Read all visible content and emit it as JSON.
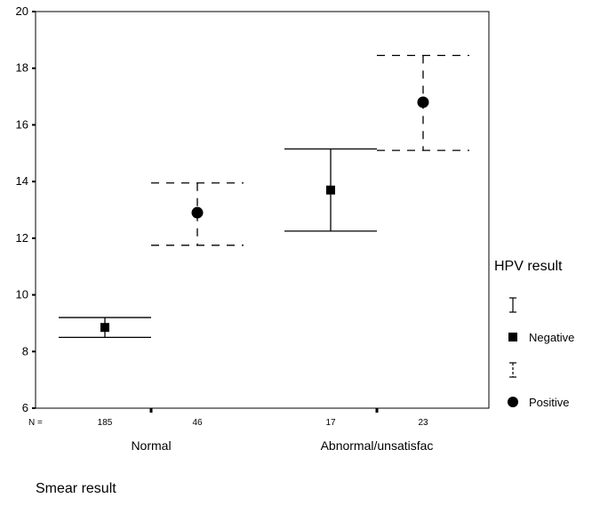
{
  "chart_data": {
    "type": "errorbar",
    "xlabel": "Smear result",
    "ylabel": "",
    "ylim": [
      6,
      20
    ],
    "yticks": [
      6,
      8,
      10,
      12,
      14,
      16,
      18,
      20
    ],
    "categories": [
      "Normal",
      "Abnormal/unsatisfac"
    ],
    "n_prefix": "N =",
    "legend": {
      "title": "HPV result",
      "position": "right"
    },
    "series": [
      {
        "name": "Negative",
        "marker": "square",
        "line_style": "solid",
        "n": [
          "185",
          "17"
        ],
        "mean": [
          8.85,
          13.7
        ],
        "lower": [
          8.5,
          12.25
        ],
        "upper": [
          9.2,
          15.15
        ]
      },
      {
        "name": "Positive",
        "marker": "circle",
        "line_style": "dashed",
        "n": [
          "46",
          "23"
        ],
        "mean": [
          12.9,
          16.8
        ],
        "lower": [
          11.75,
          15.1
        ],
        "upper": [
          13.95,
          18.45
        ]
      }
    ]
  }
}
